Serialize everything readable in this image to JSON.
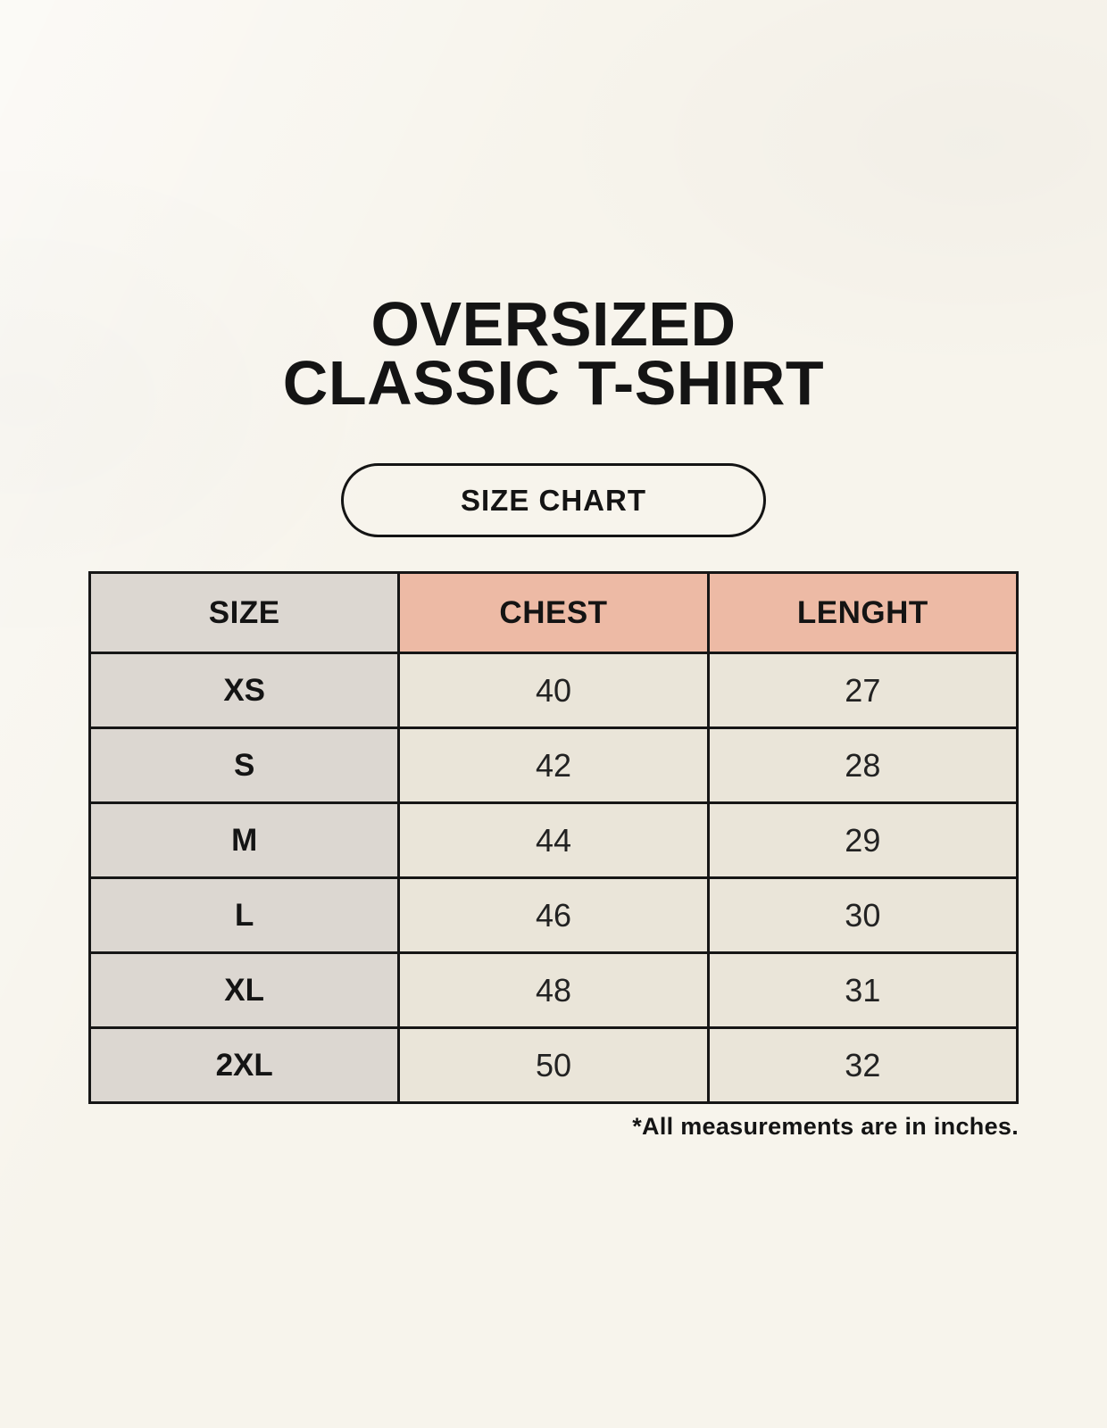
{
  "header": {
    "title_line1": "OVERSIZED",
    "title_line2": "CLASSIC T-SHIRT",
    "badge_label": "SIZE CHART"
  },
  "table": {
    "columns": [
      "SIZE",
      "CHEST",
      "LENGHT"
    ],
    "rows": [
      {
        "size": "XS",
        "chest": "40",
        "length": "27"
      },
      {
        "size": "S",
        "chest": "42",
        "length": "28"
      },
      {
        "size": "M",
        "chest": "44",
        "length": "29"
      },
      {
        "size": "L",
        "chest": "46",
        "length": "30"
      },
      {
        "size": "XL",
        "chest": "48",
        "length": "31"
      },
      {
        "size": "2XL",
        "chest": "50",
        "length": "32"
      }
    ],
    "footnote": "*All measurements are in inches."
  },
  "colors": {
    "page_background": "#f7f4ec",
    "size_column_background": "#dcd7d1",
    "accent_header_background": "#edbaa5",
    "value_cell_background": "#eae5d9",
    "table_border": "#161616",
    "text": "#141414"
  },
  "chart_data": {
    "type": "table",
    "title": "OVERSIZED CLASSIC T-SHIRT — SIZE CHART",
    "columns": [
      "SIZE",
      "CHEST",
      "LENGHT"
    ],
    "rows": [
      [
        "XS",
        40,
        27
      ],
      [
        "S",
        42,
        28
      ],
      [
        "M",
        44,
        29
      ],
      [
        "L",
        46,
        30
      ],
      [
        "XL",
        48,
        31
      ],
      [
        "2XL",
        50,
        32
      ]
    ],
    "note": "*All measurements are in inches."
  }
}
